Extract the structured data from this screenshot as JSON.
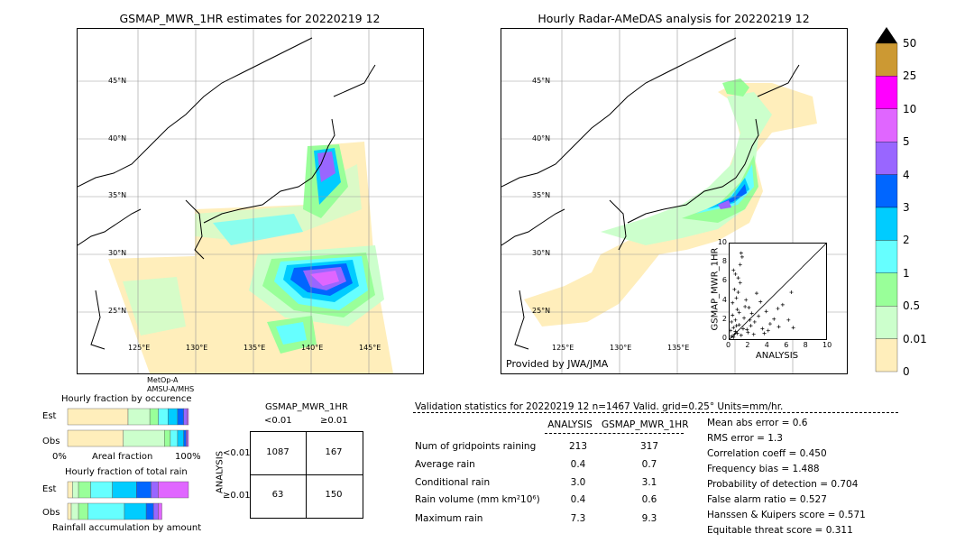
{
  "left_map": {
    "title": "GSMAP_MWR_1HR estimates for 20220219 12",
    "lat_labels": [
      "45°N",
      "40°N",
      "35°N",
      "30°N",
      "25°N"
    ],
    "lon_labels": [
      "125°E",
      "130°E",
      "135°E",
      "140°E",
      "145°E"
    ],
    "satellite_note_1": "MetOp-A",
    "satellite_note_2": "AMSU-A/MHS"
  },
  "right_map": {
    "title": "Hourly Radar-AMeDAS analysis for 20220219 12",
    "lat_labels": [
      "45°N",
      "40°N",
      "35°N",
      "30°N",
      "25°N"
    ],
    "lon_labels": [
      "125°E",
      "130°E",
      "135°E"
    ],
    "credit": "Provided by JWA/JMA"
  },
  "colorbar": {
    "labels": [
      "50",
      "25",
      "10",
      "5",
      "4",
      "3",
      "2",
      "1",
      "0.5",
      "0.01",
      "0"
    ],
    "colors": [
      "#cc9933",
      "#ff00ff",
      "#e066ff",
      "#9966ff",
      "#0066ff",
      "#00ccff",
      "#66ffff",
      "#99ff99",
      "#ccffcc",
      "#ffeebb"
    ]
  },
  "chart_data": [
    {
      "type": "scatter",
      "title": "",
      "xlabel": "ANALYSIS",
      "ylabel": "GSMAP_MWR_1HR",
      "xlim": [
        0,
        10
      ],
      "ylim": [
        0,
        10
      ],
      "x_ticks": [
        "0",
        "2",
        "4",
        "6",
        "8",
        "10"
      ],
      "y_ticks": [
        "0",
        "2",
        "4",
        "6",
        "8",
        "10"
      ],
      "points": [
        [
          0.2,
          0.3
        ],
        [
          0.4,
          1.2
        ],
        [
          0.6,
          0.8
        ],
        [
          0.3,
          2.5
        ],
        [
          0.8,
          3.1
        ],
        [
          1.0,
          1.5
        ],
        [
          1.2,
          0.4
        ],
        [
          0.5,
          5.2
        ],
        [
          0.9,
          6.4
        ],
        [
          1.1,
          7.8
        ],
        [
          1.3,
          8.6
        ],
        [
          0.7,
          4.3
        ],
        [
          1.5,
          2.2
        ],
        [
          1.8,
          1.0
        ],
        [
          2.0,
          3.3
        ],
        [
          2.3,
          2.7
        ],
        [
          2.6,
          1.8
        ],
        [
          3.0,
          2.4
        ],
        [
          3.4,
          1.1
        ],
        [
          3.8,
          2.9
        ],
        [
          4.2,
          1.6
        ],
        [
          4.6,
          2.1
        ],
        [
          5.1,
          1.3
        ],
        [
          5.5,
          3.6
        ],
        [
          6.1,
          2.0
        ],
        [
          6.6,
          1.2
        ],
        [
          2.8,
          4.8
        ],
        [
          3.2,
          3.9
        ],
        [
          0.1,
          0.9
        ],
        [
          0.2,
          1.8
        ],
        [
          0.4,
          0.2
        ],
        [
          0.6,
          2.0
        ],
        [
          0.8,
          0.6
        ],
        [
          1.0,
          2.8
        ],
        [
          1.4,
          1.1
        ],
        [
          1.6,
          3.4
        ],
        [
          0.3,
          3.8
        ],
        [
          0.5,
          0.5
        ],
        [
          0.7,
          1.4
        ],
        [
          1.9,
          0.7
        ],
        [
          2.2,
          1.4
        ],
        [
          2.5,
          0.5
        ],
        [
          3.6,
          0.6
        ],
        [
          4.0,
          0.9
        ],
        [
          0.9,
          4.9
        ],
        [
          1.1,
          5.9
        ],
        [
          0.6,
          6.8
        ],
        [
          1.2,
          9.0
        ],
        [
          0.4,
          7.2
        ],
        [
          1.7,
          4.1
        ],
        [
          2.1,
          2.0
        ],
        [
          6.4,
          4.9
        ],
        [
          5.0,
          3.2
        ]
      ]
    },
    {
      "type": "bar",
      "title": "Hourly fraction by occurence",
      "categories": [
        "Est",
        "Obs"
      ],
      "x_ticks": [
        "0%",
        "100%"
      ],
      "xlabel": "Areal fraction",
      "series": [
        {
          "values": [
            0.5,
            0.46
          ]
        },
        {
          "values": [
            0.18,
            0.34
          ]
        },
        {
          "values": [
            0.07,
            0.05
          ]
        },
        {
          "values": [
            0.08,
            0.06
          ]
        },
        {
          "values": [
            0.08,
            0.05
          ]
        },
        {
          "values": [
            0.05,
            0.02
          ]
        },
        {
          "values": [
            0.03,
            0.01
          ]
        },
        {
          "values": [
            0.01,
            0.01
          ]
        }
      ]
    },
    {
      "type": "bar",
      "title": "Hourly fraction of total rain",
      "categories": [
        "Est",
        "Obs"
      ],
      "xlabel": "Rainfall accumulation by amount",
      "series": [
        {
          "values": [
            0.04,
            0.03
          ]
        },
        {
          "values": [
            0.05,
            0.06
          ]
        },
        {
          "values": [
            0.1,
            0.08
          ]
        },
        {
          "values": [
            0.18,
            0.3
          ]
        },
        {
          "values": [
            0.2,
            0.18
          ]
        },
        {
          "values": [
            0.12,
            0.06
          ]
        },
        {
          "values": [
            0.06,
            0.04
          ]
        },
        {
          "values": [
            0.25,
            0.03
          ]
        }
      ]
    }
  ],
  "contingency": {
    "title": "GSMAP_MWR_1HR",
    "col_lt": "<0.01",
    "col_ge": "≥0.01",
    "row_axis": "ANALYSIS",
    "row_lt": "<0.01",
    "row_ge": "≥0.01",
    "cells": [
      "1087",
      "167",
      "63",
      "150"
    ]
  },
  "validation": {
    "header": "Validation statistics for 20220219 12  n=1467 Valid. grid=0.25° Units=mm/hr.",
    "col_analysis": "ANALYSIS",
    "col_gsmap": "GSMAP_MWR_1HR",
    "rows": [
      {
        "label": "Num of gridpoints raining",
        "a": "213",
        "g": "317"
      },
      {
        "label": "Average rain",
        "a": "0.4",
        "g": "0.7"
      },
      {
        "label": "Conditional rain",
        "a": "3.0",
        "g": "3.1"
      },
      {
        "label": "Rain volume (mm km²10⁶)",
        "a": "0.4",
        "g": "0.6"
      },
      {
        "label": "Maximum rain",
        "a": "7.3",
        "g": "9.3"
      }
    ],
    "scores": [
      "Mean abs error =    0.6",
      "RMS error =    1.3",
      "Correlation coeff =  0.450",
      "Frequency bias =  1.488",
      "Probability of detection =  0.704",
      "False alarm ratio =  0.527",
      "Hanssen & Kuipers score =  0.571",
      "Equitable threat score =  0.311"
    ]
  }
}
